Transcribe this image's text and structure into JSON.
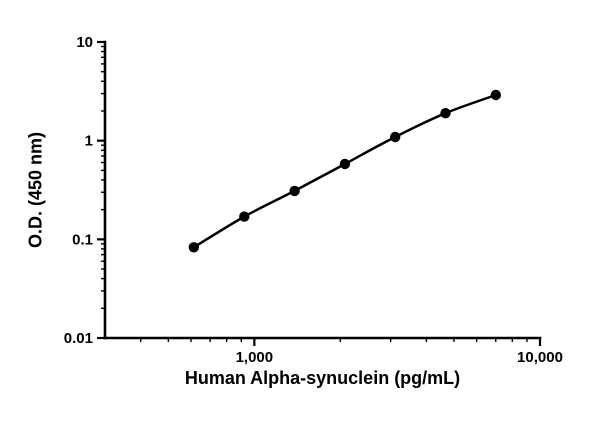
{
  "chart_data": {
    "type": "scatter",
    "title": "",
    "xlabel": "Human Alpha-synuclein (pg/mL)",
    "ylabel": "O.D. (450 nm)",
    "xscale": "log",
    "yscale": "log",
    "xlim": [
      300,
      10000
    ],
    "ylim": [
      0.01,
      10
    ],
    "grid": false,
    "legend": false,
    "line_color": "#000000",
    "marker_color": "#000000",
    "x": [
      614,
      922,
      1383,
      2074,
      3111,
      4667,
      7000
    ],
    "y": [
      0.083,
      0.17,
      0.31,
      0.58,
      1.09,
      1.9,
      2.9
    ],
    "x_ticks": [
      {
        "value": 1000,
        "label": "1,000"
      },
      {
        "value": 10000,
        "label": "10,000"
      }
    ],
    "y_ticks": [
      {
        "value": 0.01,
        "label": "0.01"
      },
      {
        "value": 0.1,
        "label": "0.1"
      },
      {
        "value": 1,
        "label": "1"
      },
      {
        "value": 10,
        "label": "10"
      }
    ]
  }
}
